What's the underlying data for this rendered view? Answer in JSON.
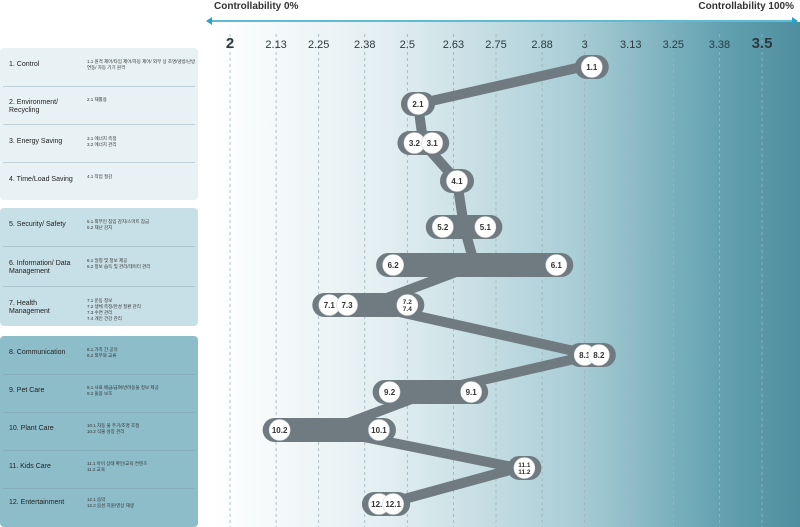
{
  "colors": {
    "accent": "#29a3c7",
    "track": "#6f7b80",
    "node_fill": "#ffffff",
    "grid": "#9fb3b9"
  },
  "header": {
    "left_label": "Controllability 0%",
    "right_label": "Controllability 100%"
  },
  "chart_data": {
    "type": "scatter",
    "title": "",
    "xlabel": "",
    "ylabel": "",
    "xlim": [
      2,
      3.5
    ],
    "x_ticks": [
      "2",
      "2.13",
      "2.25",
      "2.38",
      "2.5",
      "2.63",
      "2.75",
      "2.88",
      "3",
      "3.13",
      "3.25",
      "3.38",
      "3.5"
    ],
    "grid": true,
    "path_order": [
      "1",
      "2",
      "3",
      "4",
      "5",
      "6",
      "7",
      "8",
      "9",
      "10",
      "11",
      "12"
    ],
    "categories": [
      {
        "id": "1",
        "label": "1. Control",
        "sub": "1.1 원격 제어/타임 제어/자동 제어/ 외부 상 조명/냉방/난방 연동/ 자동 기기 원격",
        "nodes": [
          {
            "label": "1.1",
            "x": 3.02
          }
        ],
        "center": 2.99
      },
      {
        "id": "2",
        "label": "2. Environment/ Recycling",
        "sub": "2.1 재활용",
        "nodes": [
          {
            "label": "2.1",
            "x": 2.53
          }
        ],
        "center": 2.53
      },
      {
        "id": "3",
        "label": "3. Energy Saving",
        "sub": "3.1 에너지 측정\n3.2 에너지 관리",
        "nodes": [
          {
            "label": "3.2",
            "x": 2.52
          },
          {
            "label": "3.1",
            "x": 2.57
          }
        ],
        "center": 2.545
      },
      {
        "id": "4",
        "label": "4. Time/Load Saving",
        "sub": "4.1 작업 절감",
        "nodes": [
          {
            "label": "4.1",
            "x": 2.64
          }
        ],
        "center": 2.64
      },
      {
        "id": "5",
        "label": "5. Security/ Safety",
        "sub": "5.1 외부인 침입 감지/스마트 잠금\n5.2 재난 감지",
        "nodes": [
          {
            "label": "5.2",
            "x": 2.6
          },
          {
            "label": "5.1",
            "x": 2.72
          }
        ],
        "center": 2.66
      },
      {
        "id": "6",
        "label": "6. Information/ Data Management",
        "sub": "6.1 일정 및 정보 제공\n6.2 정보 습득 및 관리/데이터 관리",
        "nodes": [
          {
            "label": "6.2",
            "x": 2.46
          },
          {
            "label": "6.1",
            "x": 2.92
          }
        ],
        "center": 2.69
      },
      {
        "id": "7",
        "label": "7. Health Management",
        "sub": "7.1 운동 정보\n7.2 생체 측정/만성 질환 관리\n7.3 수면 관리\n7.4 개인 건강 관리",
        "nodes": [
          {
            "label": "7.1",
            "x": 2.28
          },
          {
            "label": "7.3",
            "x": 2.33
          },
          {
            "label": "7.2\n7.4",
            "x": 2.5
          }
        ],
        "center": 2.39
      },
      {
        "id": "8",
        "label": "8. Communication",
        "sub": "8.1 가족 간 공유\n8.2 외부와 교류",
        "nodes": [
          {
            "label": "8.1",
            "x": 3.0
          },
          {
            "label": "8.2",
            "x": 3.04
          }
        ],
        "center": 3.02
      },
      {
        "id": "9",
        "label": "9. Pet Care",
        "sub": "9.1 사료 배급/급여/반려동물 정보 제공\n9.2 돌봄 보조",
        "nodes": [
          {
            "label": "9.2",
            "x": 2.45
          },
          {
            "label": "9.1",
            "x": 2.68
          }
        ],
        "center": 2.565
      },
      {
        "id": "10",
        "label": "10. Plant Care",
        "sub": "10.1 자동 물 주기/조명 조절\n10.2 식물 성장 관리",
        "nodes": [
          {
            "label": "10.2",
            "x": 2.14
          },
          {
            "label": "10.1",
            "x": 2.42
          }
        ],
        "center": 2.28
      },
      {
        "id": "11",
        "label": "11. Kids Care",
        "sub": "11.1 아이 상태 확인/교육 컨텐츠\n11.2 교육",
        "nodes": [
          {
            "label": "11.1\n11.2",
            "x": 2.83
          }
        ],
        "center": 2.81
      },
      {
        "id": "12",
        "label": "12. Entertainment",
        "sub": "12.1 음악\n12.2 음성 지원/영상 재생",
        "nodes": [
          {
            "label": "12.2",
            "x": 2.42
          },
          {
            "label": "12.1",
            "x": 2.46
          }
        ],
        "center": 2.44
      }
    ]
  }
}
